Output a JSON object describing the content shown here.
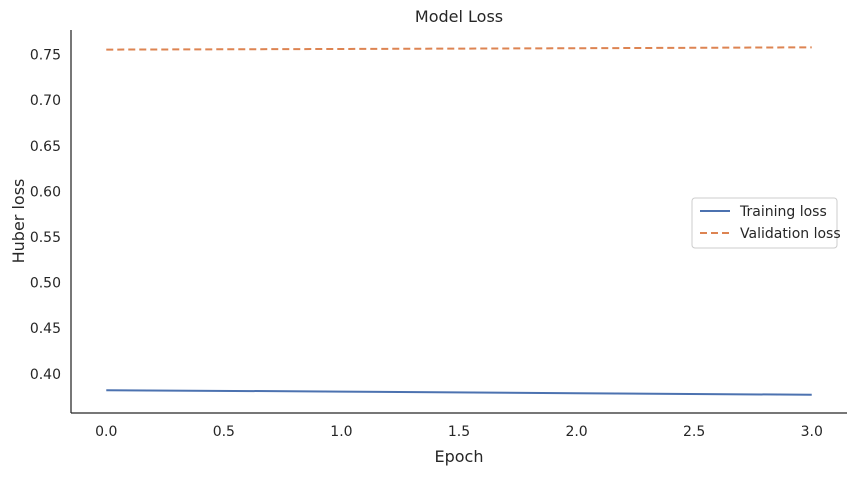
{
  "chart_data": {
    "type": "line",
    "title": "Model Loss",
    "xlabel": "Epoch",
    "ylabel": "Huber loss",
    "x": [
      0,
      1,
      2,
      3
    ],
    "xlim": [
      -0.15,
      3.15
    ],
    "ylim": [
      0.357,
      0.777
    ],
    "xticks": [
      "0.0",
      "0.5",
      "1.0",
      "1.5",
      "2.0",
      "2.5",
      "3.0"
    ],
    "xtick_values": [
      0,
      0.5,
      1,
      1.5,
      2,
      2.5,
      3
    ],
    "yticks": [
      "0.40",
      "0.45",
      "0.50",
      "0.55",
      "0.60",
      "0.65",
      "0.70",
      "0.75"
    ],
    "ytick_values": [
      0.4,
      0.45,
      0.5,
      0.55,
      0.6,
      0.65,
      0.7,
      0.75
    ],
    "grid": false,
    "legend_position": "center-right",
    "series": [
      {
        "name": "Training loss",
        "values": [
          0.382,
          0.3805,
          0.3787,
          0.377
        ],
        "color": "#4c72b0",
        "linestyle": "solid"
      },
      {
        "name": "Validation loss",
        "values": [
          0.7555,
          0.7562,
          0.757,
          0.758
        ],
        "color": "#dd8452",
        "linestyle": "dashed"
      }
    ]
  }
}
